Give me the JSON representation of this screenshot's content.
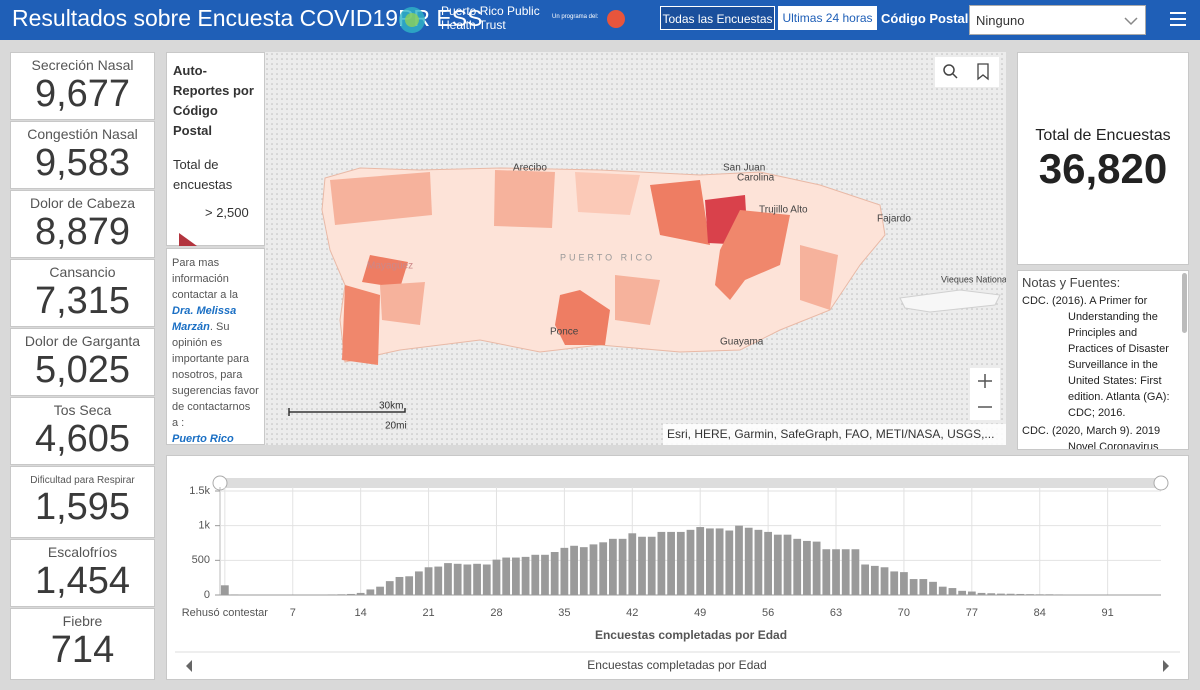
{
  "header": {
    "title": "Resultados sobre Encuesta COVID19PR ESS",
    "org": "Puerto Rico Public Health Trust",
    "program": "Un programa del:",
    "buttons": [
      "Todas las Encuestas",
      "Ultimas 24 horas"
    ],
    "zip_label": "Código Postal",
    "zip_value": "Ninguno"
  },
  "indicators": [
    {
      "label": "Secreción Nasal",
      "value": "9,677"
    },
    {
      "label": "Congestión Nasal",
      "value": "9,583"
    },
    {
      "label": "Dolor de Cabeza",
      "value": "8,879"
    },
    {
      "label": "Cansancio",
      "value": "7,315"
    },
    {
      "label": "Dolor de Garganta",
      "value": "5,025"
    },
    {
      "label": "Tos Seca",
      "value": "4,605"
    },
    {
      "label": "Dificultad para Respirar",
      "value": "1,595"
    },
    {
      "label": "Escalofríos",
      "value": "1,454"
    },
    {
      "label": "Fiebre",
      "value": "714"
    }
  ],
  "legend": {
    "title": "Auto-Reportes por Código Postal",
    "field": "Total de encuestas",
    "class": "> 2,500"
  },
  "contact": {
    "intro": "Para mas información contactar a la ",
    "name": "Dra. Melissa Marzán",
    "body": ". Su opinión es importante para nosotros, para sugerencias favor de contactarnos a :",
    "link": "Puerto Rico"
  },
  "map": {
    "labels": [
      "Arecibo",
      "San Juan",
      "Carolina",
      "Trujillo Alto",
      "Fajardo",
      "PUERTO RICO",
      "Mayagüez",
      "Ponce",
      "Guayama",
      "Vieques National Wildlife Refuge"
    ],
    "scale_km": "30km",
    "scale_mi": "20mi",
    "attribution": "Esri, HERE, Garmin, SafeGraph, FAO, METI/NASA, USGS,..."
  },
  "total": {
    "label": "Total de Encuestas",
    "value": "36,820"
  },
  "notes": {
    "title": "Notas y Fuentes:",
    "refs": [
      "CDC. (2016). A Primer for Understanding the Principles and Practices of Disaster Surveillance in the United States: First edition. Atlanta (GA): CDC; 2016.",
      "CDC. (2020, March 9). 2019 Novel Coronavirus"
    ]
  },
  "nav_caption": "Encuestas completadas por Edad",
  "chart_data": {
    "type": "bar",
    "x_label": "Encuestas completadas por Edad",
    "categories": [
      "Rehusó contestar",
      null,
      null,
      null,
      null,
      null,
      null,
      "7",
      null,
      null,
      null,
      null,
      null,
      null,
      "14",
      null,
      null,
      null,
      null,
      null,
      null,
      "21",
      null,
      null,
      null,
      null,
      null,
      null,
      "28",
      null,
      null,
      null,
      null,
      null,
      null,
      "35",
      null,
      null,
      null,
      null,
      null,
      null,
      "42",
      null,
      null,
      null,
      null,
      null,
      null,
      "49",
      null,
      null,
      null,
      null,
      null,
      null,
      "56",
      null,
      null,
      null,
      null,
      null,
      null,
      "63",
      null,
      null,
      null,
      null,
      null,
      null,
      "70",
      null,
      null,
      null,
      null,
      null,
      null,
      "77",
      null,
      null,
      null,
      null,
      null,
      null,
      "84",
      null,
      null,
      null,
      null,
      null,
      null,
      "91",
      null,
      null,
      null,
      null,
      null
    ],
    "values": [
      140,
      8,
      6,
      5,
      5,
      6,
      7,
      5,
      6,
      6,
      7,
      8,
      10,
      15,
      30,
      80,
      120,
      200,
      260,
      270,
      340,
      400,
      410,
      460,
      450,
      440,
      450,
      440,
      510,
      540,
      540,
      550,
      580,
      580,
      620,
      680,
      710,
      690,
      730,
      760,
      810,
      810,
      890,
      840,
      840,
      910,
      910,
      910,
      940,
      980,
      960,
      960,
      930,
      1000,
      970,
      940,
      910,
      870,
      870,
      810,
      780,
      770,
      660,
      660,
      660,
      660,
      440,
      420,
      400,
      340,
      330,
      230,
      230,
      190,
      120,
      100,
      60,
      50,
      30,
      25,
      20,
      18,
      15,
      12,
      10,
      10,
      8,
      7,
      6,
      5,
      5,
      4,
      4,
      3,
      3,
      2,
      2
    ],
    "color": "#9a9a9a",
    "ylim": [
      0,
      1500
    ],
    "yticks": [
      0,
      500,
      {
        "value": 1000,
        "label": "1k"
      },
      {
        "value": 1500,
        "label": "1.5k"
      }
    ],
    "grid": true
  }
}
